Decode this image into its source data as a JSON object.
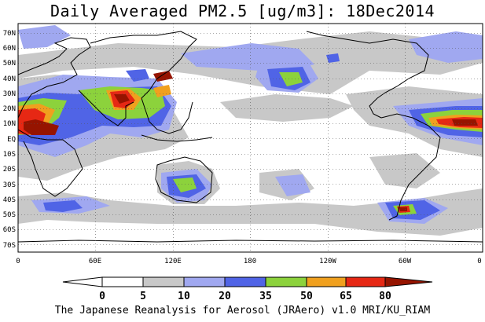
{
  "title": "Daily Averaged PM2.5 [ug/m3]: 18Dec2014",
  "credit": "The Japanese Reanalysis for Aerosol (JRAero) v1.0 MRI/KU_RIAM",
  "lat_labels": [
    "70N",
    "60N",
    "50N",
    "40N",
    "30N",
    "20N",
    "10N",
    "EQ",
    "10S",
    "20S",
    "30S",
    "40S",
    "50S",
    "60S",
    "70S"
  ],
  "lon_labels": [
    "0",
    "60E",
    "120E",
    "180",
    "120W",
    "60W",
    "0"
  ],
  "colorbar": {
    "levels": [
      "0",
      "5",
      "10",
      "20",
      "35",
      "50",
      "65",
      "80"
    ],
    "colors": [
      "#ffffff",
      "#c8c8c8",
      "#a0a8f0",
      "#5064e6",
      "#8cd23c",
      "#f0a01e",
      "#e62814",
      "#961400"
    ]
  },
  "legend": {
    "unit": "ug/m3",
    "classes": [
      "0-5",
      "5-10",
      "10-20",
      "20-35",
      "35-50",
      "50-65",
      "65-80",
      ">80"
    ]
  }
}
